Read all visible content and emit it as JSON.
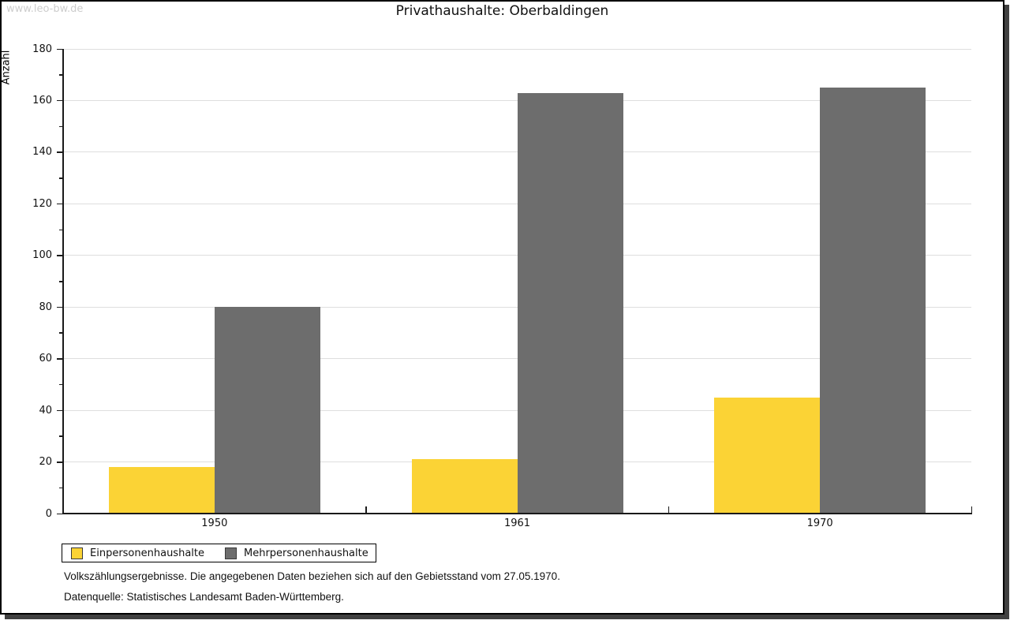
{
  "watermark": "www.leo-bw.de",
  "footer": {
    "line1": "Volkszählungsergebnisse. Die angegebenen Daten beziehen sich auf den Gebietsstand vom 27.05.1970.",
    "line2": "Datenquelle: Statistisches Landesamt Baden-Württemberg."
  },
  "chart_data": {
    "type": "bar",
    "title": "Privathaushalte: Oberbaldingen",
    "xlabel": "",
    "ylabel": "Anzahl",
    "categories": [
      "1950",
      "1961",
      "1970"
    ],
    "series": [
      {
        "name": "Einpersonenhaushalte",
        "color": "#FBD335",
        "values": [
          18,
          21,
          45
        ]
      },
      {
        "name": "Mehrpersonenhaushalte",
        "color": "#6D6D6D",
        "values": [
          80,
          163,
          165
        ]
      }
    ],
    "ylim": [
      0,
      180
    ],
    "y_major_step": 20,
    "y_minor_step": 10,
    "grid": "horizontal-major-only",
    "legend_position": "bottom-left",
    "colors": {
      "gridline": "#dedede",
      "axis": "#1a1a1a",
      "watermark": "#cdcdcd"
    }
  }
}
